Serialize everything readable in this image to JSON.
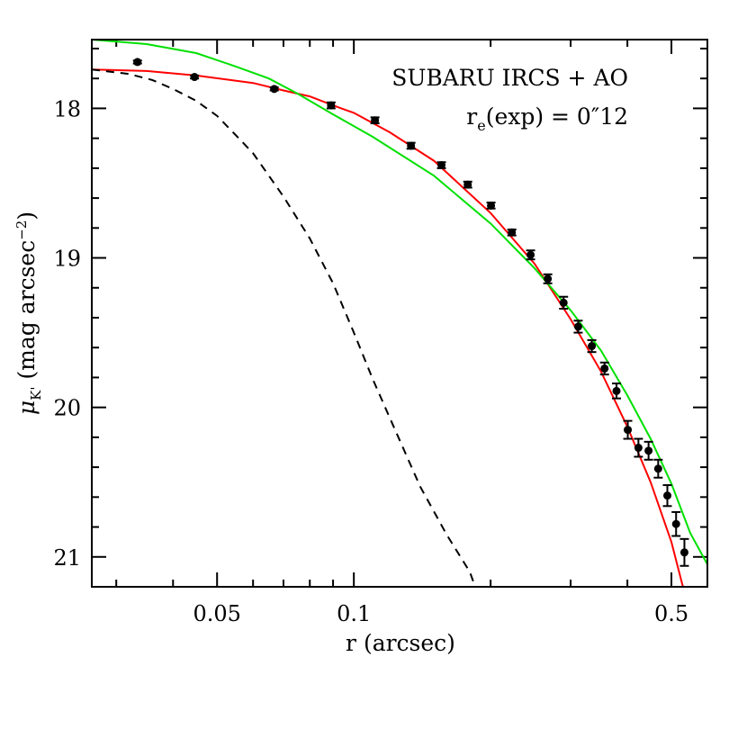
{
  "chart_data": {
    "type": "scatter",
    "xscale": "log",
    "xlim": [
      0.0265,
      0.6
    ],
    "ylim": [
      17.54,
      21.2
    ],
    "y_inverted": true,
    "xlabel": "r (arcsec)",
    "ylabel_symbol": "μ",
    "ylabel_sub": "K'",
    "ylabel_units": " (mag arcsec",
    "ylabel_exp": "−2",
    "ylabel_close": ")",
    "x_ticks": [
      {
        "value": 0.05,
        "label": "0.05"
      },
      {
        "value": 0.1,
        "label": "0.1"
      },
      {
        "value": 0.5,
        "label": "0.5"
      }
    ],
    "x_minor_ticks": [
      0.03,
      0.04,
      0.06,
      0.07,
      0.08,
      0.09,
      0.2,
      0.3,
      0.4
    ],
    "y_ticks": [
      {
        "value": 18,
        "label": "18"
      },
      {
        "value": 19,
        "label": "19"
      },
      {
        "value": 20,
        "label": "20"
      },
      {
        "value": 21,
        "label": "21"
      }
    ],
    "y_minor_step": 0.2,
    "annotation": {
      "line1": "SUBARU IRCS + AO",
      "line2_a": "r",
      "line2_sub": "e",
      "line2_b": "(exp)  =  0",
      "line2_prime": "″",
      "line2_c": "12"
    },
    "colors": {
      "data": "#000000",
      "exp_fit": "#ff0000",
      "devauc_fit": "#00e000",
      "psf": "#000000"
    },
    "series": [
      {
        "kind": "points",
        "x": [
          0.0334,
          0.0446,
          0.0668,
          0.0891,
          0.1113,
          0.1336,
          0.1559,
          0.1781,
          0.2004,
          0.2227,
          0.2449,
          0.2672,
          0.2895,
          0.3117,
          0.334,
          0.3563,
          0.3785,
          0.4008,
          0.423,
          0.4453,
          0.4676,
          0.4898,
          0.512,
          0.534
        ],
        "y": [
          17.69,
          17.79,
          17.87,
          17.98,
          18.08,
          18.25,
          18.38,
          18.51,
          18.65,
          18.83,
          18.98,
          19.14,
          19.3,
          19.46,
          19.59,
          19.74,
          19.89,
          20.15,
          20.27,
          20.29,
          20.41,
          20.59,
          20.78,
          20.97
        ],
        "err": [
          0.01,
          0.01,
          0.01,
          0.02,
          0.02,
          0.02,
          0.02,
          0.02,
          0.02,
          0.02,
          0.03,
          0.03,
          0.04,
          0.04,
          0.04,
          0.04,
          0.05,
          0.06,
          0.06,
          0.06,
          0.06,
          0.07,
          0.08,
          0.09
        ]
      },
      {
        "kind": "line",
        "style": "solid",
        "color_key": "exp_fit",
        "x": [
          0.0265,
          0.035,
          0.045,
          0.06,
          0.07,
          0.08,
          0.09,
          0.1,
          0.12,
          0.15,
          0.2,
          0.25,
          0.3,
          0.35,
          0.4,
          0.45,
          0.5,
          0.53
        ],
        "y": [
          17.74,
          17.75,
          17.78,
          17.83,
          17.88,
          17.92,
          17.98,
          18.03,
          18.16,
          18.35,
          18.7,
          19.04,
          19.41,
          19.76,
          20.13,
          20.5,
          20.9,
          21.2
        ]
      },
      {
        "kind": "line",
        "style": "solid",
        "color_key": "devauc_fit",
        "x": [
          0.0265,
          0.035,
          0.045,
          0.055,
          0.065,
          0.075,
          0.09,
          0.11,
          0.15,
          0.2,
          0.25,
          0.3,
          0.35,
          0.4,
          0.45,
          0.5,
          0.55,
          0.6
        ],
        "y": [
          17.54,
          17.57,
          17.63,
          17.72,
          17.8,
          17.9,
          18.04,
          18.19,
          18.45,
          18.77,
          19.07,
          19.35,
          19.62,
          19.92,
          20.21,
          20.51,
          20.84,
          21.05
        ]
      },
      {
        "kind": "line",
        "style": "dashed",
        "color_key": "psf",
        "x": [
          0.0265,
          0.032,
          0.036,
          0.04,
          0.045,
          0.05,
          0.055,
          0.06,
          0.07,
          0.08,
          0.09,
          0.1,
          0.11,
          0.12,
          0.14,
          0.16,
          0.18,
          0.185
        ],
        "y": [
          17.74,
          17.77,
          17.81,
          17.87,
          17.95,
          18.05,
          18.18,
          18.3,
          18.59,
          18.87,
          19.17,
          19.5,
          19.81,
          20.07,
          20.53,
          20.85,
          21.1,
          21.2
        ]
      }
    ]
  }
}
